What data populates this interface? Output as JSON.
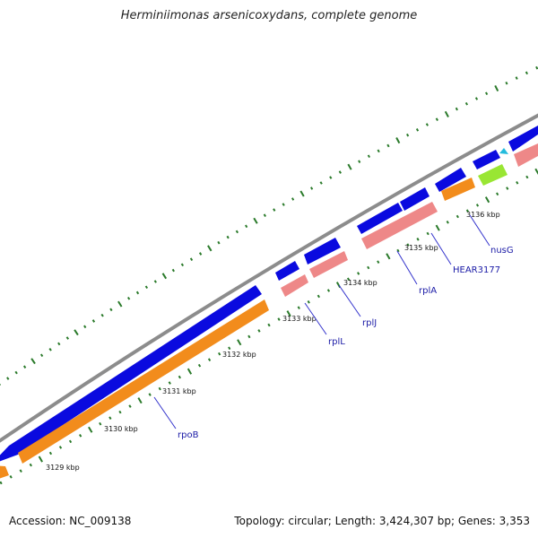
{
  "title": "Herminiimonas arsenicoxydans, complete genome",
  "footer": {
    "accession": "Accession: NC_009138",
    "summary": "Topology: circular; Length: 3,424,307 bp; Genes: 3,353"
  },
  "colors": {
    "backbone": "#8c8c8c",
    "forward_cds": "#0a0adf",
    "reverse_cds": "#f28c1c",
    "reverse_rrna_like": "#ee8888",
    "green_feature": "#99e633",
    "cyan_feature": "#22bbdd",
    "tick": "#2a7a2a",
    "label_line": "#3333cc"
  },
  "kbp_ticks": [
    "3129 kbp",
    "3130 kbp",
    "3131 kbp",
    "3132 kbp",
    "3133 kbp",
    "3134 kbp",
    "3135 kbp",
    "3136 kbp"
  ],
  "genes": [
    {
      "name": "rpoB",
      "strand": "reverse"
    },
    {
      "name": "rplL",
      "strand": "forward"
    },
    {
      "name": "rplJ",
      "strand": "forward"
    },
    {
      "name": "rplA",
      "strand": "forward"
    },
    {
      "name": "HEAR3177",
      "strand": "forward"
    },
    {
      "name": "nusG",
      "strand": "forward"
    }
  ]
}
